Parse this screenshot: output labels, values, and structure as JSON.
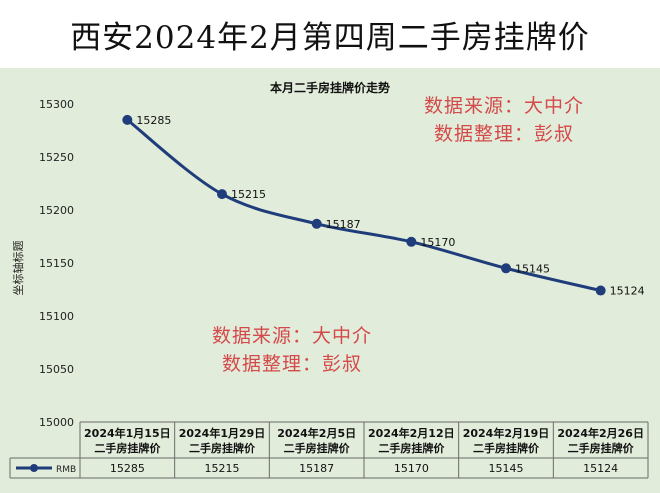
{
  "header": {
    "title": "西安2024年2月第四周二手房挂牌价"
  },
  "chart_data": {
    "type": "line",
    "title": "本月二手房挂牌价走势",
    "ylabel": "坐标轴标题",
    "xlabel": "",
    "ylim": [
      15000,
      15300
    ],
    "yticks": [
      15000,
      15050,
      15100,
      15150,
      15200,
      15250,
      15300
    ],
    "categories": [
      "2024年1月15日 二手房挂牌价",
      "2024年1月29日 二手房挂牌价",
      "2024年2月5日 二手房挂牌价",
      "2024年2月12日 二手房挂牌价",
      "2024年2月19日 二手房挂牌价",
      "2024年2月26日 二手房挂牌价"
    ],
    "category_lines": [
      [
        "2024年1月15日",
        "二手房挂牌价"
      ],
      [
        "2024年1月29日",
        "二手房挂牌价"
      ],
      [
        "2024年2月5日",
        "二手房挂牌价"
      ],
      [
        "2024年2月12日",
        "二手房挂牌价"
      ],
      [
        "2024年2月19日",
        "二手房挂牌价"
      ],
      [
        "2024年2月26日",
        "二手房挂牌价"
      ]
    ],
    "series": [
      {
        "name": "RMB",
        "values": [
          15285,
          15215,
          15187,
          15170,
          15145,
          15124
        ]
      }
    ],
    "data_table": true,
    "grid": false,
    "line_color": "#1f3d7a"
  },
  "watermarks": [
    {
      "line1": "数据来源：大中介",
      "line2": "数据整理：彭叔"
    },
    {
      "line1": "数据来源：大中介",
      "line2": "数据整理：彭叔"
    }
  ]
}
